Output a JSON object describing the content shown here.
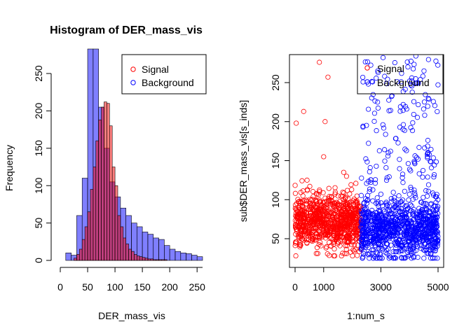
{
  "colors": {
    "signal": "#ff0000",
    "background": "#0000ff",
    "signal_fill": "rgba(255,0,0,0.5)",
    "background_fill": "rgba(0,0,255,0.5)"
  },
  "chart_data": [
    {
      "type": "histogram",
      "title": "Histogram of DER_mass_vis",
      "xlabel": "DER_mass_vis",
      "ylabel": "Frequency",
      "xlim": [
        0,
        260
      ],
      "ylim": [
        0,
        280
      ],
      "xticks": [
        0,
        50,
        100,
        150,
        200,
        250
      ],
      "yticks": [
        0,
        50,
        100,
        150,
        200,
        250
      ],
      "legend": {
        "placement": "top-right",
        "entries": [
          "Signal",
          "Background"
        ]
      },
      "series": [
        {
          "name": "Background",
          "bin_width": 10,
          "bin_starts": [
            10,
            20,
            30,
            40,
            50,
            60,
            70,
            80,
            90,
            100,
            110,
            120,
            130,
            140,
            150,
            160,
            170,
            180,
            190,
            200,
            210,
            220,
            230,
            240,
            250
          ],
          "values": [
            10,
            7,
            60,
            110,
            290,
            295,
            205,
            150,
            105,
            85,
            70,
            60,
            50,
            45,
            38,
            35,
            30,
            28,
            20,
            15,
            12,
            10,
            9,
            7,
            5
          ]
        },
        {
          "name": "Signal",
          "bin_width": 5,
          "bin_starts": [
            25,
            30,
            35,
            40,
            45,
            50,
            55,
            60,
            65,
            70,
            75,
            80,
            85,
            90,
            95,
            100,
            105,
            110,
            115,
            120,
            125,
            130,
            135,
            140,
            145,
            150,
            155,
            160,
            165,
            170,
            175,
            180,
            185,
            190
          ],
          "values": [
            3,
            8,
            15,
            28,
            45,
            65,
            95,
            125,
            160,
            188,
            205,
            212,
            210,
            180,
            125,
            100,
            60,
            45,
            30,
            22,
            15,
            12,
            8,
            6,
            5,
            4,
            3,
            2,
            2,
            1,
            1,
            1,
            1,
            1
          ]
        }
      ]
    },
    {
      "type": "scatter",
      "xlabel": "1:num_s",
      "ylabel": "sub$DER_mass_vis[s_inds]",
      "xlim": [
        0,
        5000
      ],
      "ylim": [
        15,
        285
      ],
      "xticks": [
        0,
        1000,
        3000,
        5000
      ],
      "yticks": [
        50,
        100,
        150,
        200,
        250
      ],
      "legend": {
        "placement": "top-right",
        "entries": [
          "Signal",
          "Background"
        ]
      },
      "series": [
        {
          "name": "Signal",
          "x_range": [
            0,
            2300
          ],
          "y_core_range": [
            28,
            125
          ],
          "y_center": 72,
          "n_points": 900,
          "outliers": [
            [
              40,
              198
            ],
            [
              300,
              213
            ],
            [
              850,
              276
            ],
            [
              1050,
              200
            ],
            [
              1150,
              257
            ],
            [
              1000,
              155
            ],
            [
              1700,
              135
            ],
            [
              1800,
              130
            ]
          ]
        },
        {
          "name": "Background",
          "x_range": [
            2300,
            5000
          ],
          "y_core_range": [
            25,
            150
          ],
          "y_center": 62,
          "n_points": 1100,
          "tail_max": 285
        }
      ]
    }
  ]
}
